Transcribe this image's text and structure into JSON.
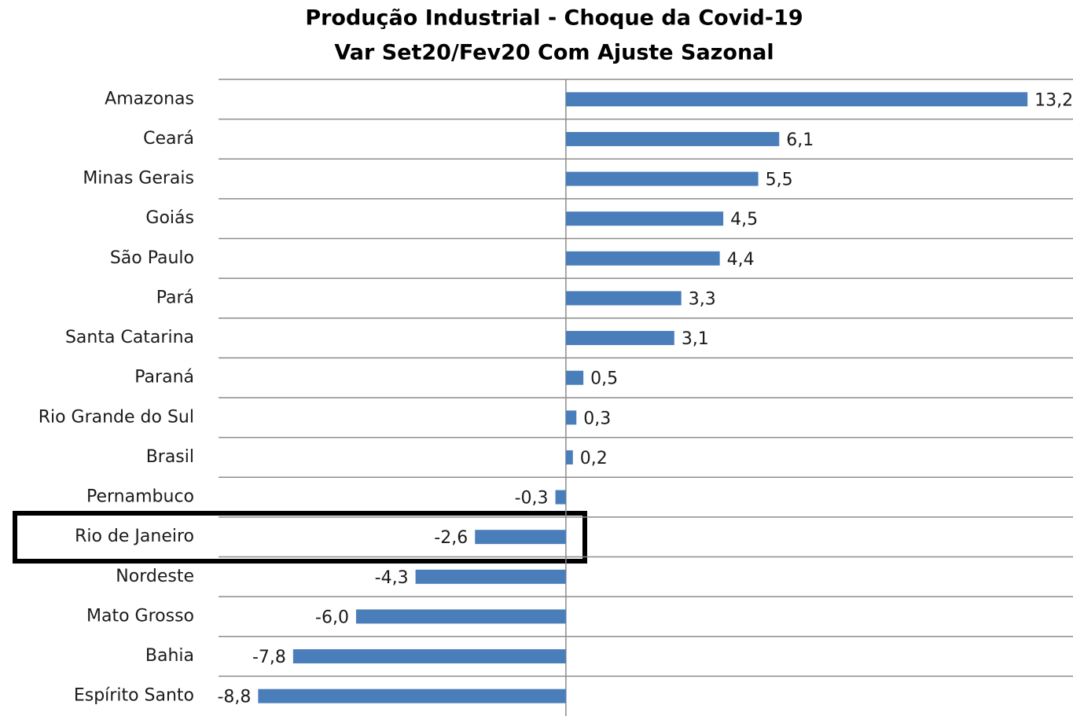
{
  "chart_data": {
    "type": "bar",
    "orientation": "horizontal",
    "title": "Produção Industrial - Choque da Covid-19",
    "subtitle": "Var Set20/Fev20 Com Ajuste Sazonal",
    "categories": [
      "Amazonas",
      "Ceará",
      "Minas Gerais",
      "Goiás",
      "São Paulo",
      "Pará",
      "Santa Catarina",
      "Paraná",
      "Rio Grande do Sul",
      "Brasil",
      "Pernambuco",
      "Rio de Janeiro",
      "Nordeste",
      "Mato Grosso",
      "Bahia",
      "Espírito Santo"
    ],
    "values": [
      13.2,
      6.1,
      5.5,
      4.5,
      4.4,
      3.3,
      3.1,
      0.5,
      0.3,
      0.2,
      -0.3,
      -2.6,
      -4.3,
      -6.0,
      -7.8,
      -8.8
    ],
    "value_labels": [
      "13,2",
      "6,1",
      "5,5",
      "4,5",
      "4,4",
      "3,3",
      "3,1",
      "0,5",
      "0,3",
      "0,2",
      "-0,3",
      "-2,6",
      "-4,3",
      "-6,0",
      "-7,8",
      "-8,8"
    ],
    "color": "#4a7ebb",
    "xlim": [
      -10,
      14.5
    ]
  }
}
